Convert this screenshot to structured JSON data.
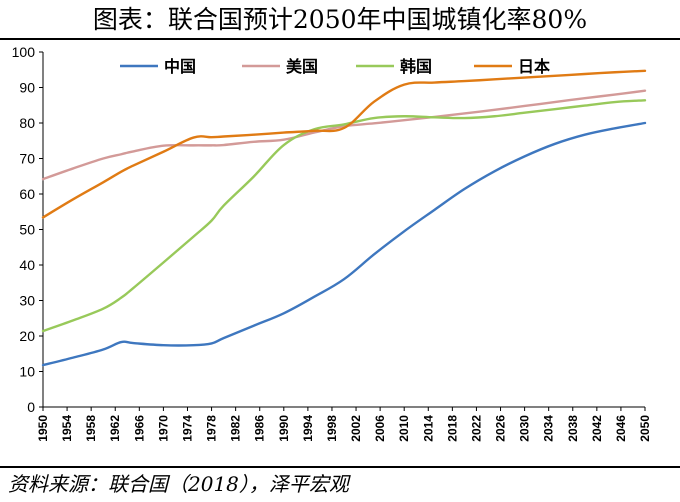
{
  "title": "图表：联合国预计2050年中国城镇化率80%",
  "source": "资料来源：联合国（2018），泽平宏观",
  "chart_data": {
    "type": "line",
    "title": "图表：联合国预计2050年中国城镇化率80%",
    "xlabel": "",
    "ylabel": "",
    "ylim": [
      0,
      100
    ],
    "yticks": [
      0,
      10,
      20,
      30,
      40,
      50,
      60,
      70,
      80,
      90,
      100
    ],
    "xlim": [
      1950,
      2050
    ],
    "xticks": [
      1950,
      1954,
      1958,
      1962,
      1966,
      1970,
      1974,
      1978,
      1982,
      1986,
      1990,
      1994,
      1998,
      2002,
      2006,
      2010,
      2014,
      2018,
      2022,
      2026,
      2030,
      2034,
      2038,
      2042,
      2046,
      2050
    ],
    "grid": false,
    "legend": "top",
    "x": [
      1950,
      1955,
      1960,
      1963,
      1965,
      1970,
      1975,
      1978,
      1980,
      1985,
      1990,
      1995,
      2000,
      2005,
      2010,
      2015,
      2020,
      2025,
      2030,
      2035,
      2040,
      2045,
      2050
    ],
    "series": [
      {
        "name": "中国",
        "color": "#3e77bf",
        "values": [
          11.8,
          13.9,
          16.2,
          18.3,
          18.0,
          17.4,
          17.4,
          17.9,
          19.4,
          22.9,
          26.4,
          31.0,
          36.0,
          43.0,
          49.5,
          55.5,
          61.4,
          66.4,
          70.6,
          74.1,
          76.7,
          78.5,
          80.0
        ]
      },
      {
        "name": "美国",
        "color": "#d39a98",
        "values": [
          64.2,
          67.2,
          70.0,
          71.2,
          72.0,
          73.6,
          73.7,
          73.7,
          73.8,
          74.7,
          75.3,
          77.3,
          79.1,
          79.9,
          80.8,
          81.7,
          82.7,
          83.7,
          84.8,
          85.9,
          87.0,
          88.0,
          89.1
        ]
      },
      {
        "name": "韩国",
        "color": "#98c95a",
        "values": [
          21.4,
          24.4,
          27.7,
          30.8,
          33.5,
          40.7,
          48.0,
          52.5,
          56.7,
          64.9,
          73.8,
          78.2,
          79.6,
          81.4,
          81.9,
          81.6,
          81.4,
          81.9,
          82.9,
          83.9,
          84.9,
          85.9,
          86.4
        ]
      },
      {
        "name": "日本",
        "color": "#e07b14",
        "values": [
          53.4,
          58.5,
          63.3,
          66.3,
          68.0,
          71.9,
          75.9,
          76.0,
          76.2,
          76.7,
          77.3,
          77.8,
          78.6,
          86.0,
          90.8,
          91.4,
          91.8,
          92.3,
          92.8,
          93.3,
          93.8,
          94.3,
          94.7
        ]
      }
    ]
  }
}
